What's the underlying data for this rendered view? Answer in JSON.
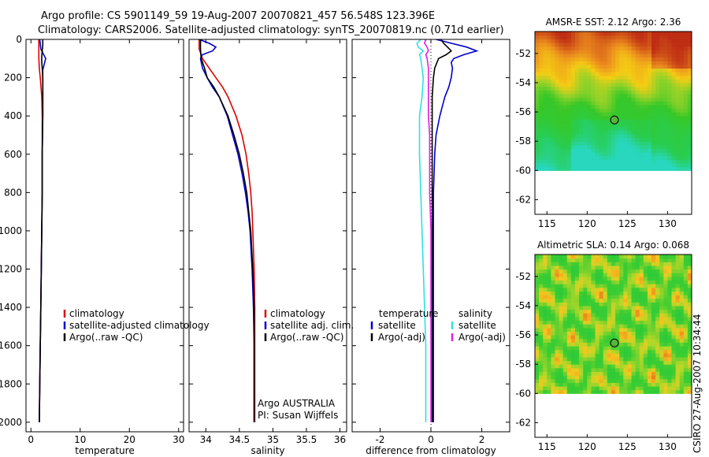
{
  "header": {
    "line1": "Argo profile: CS 5901149_59 19-Aug-2007 20070821_457 56.548S 123.396E",
    "line2": "Climatology: CARS2006. Satellite-adjusted climatology: synTS_20070819.nc (0.71d earlier)"
  },
  "side_label": "CSIRO 27-Aug-2007 10:34:44",
  "colors": {
    "red": "#e00000",
    "blue": "#0000d0",
    "black": "#000000",
    "cyan": "#30e0e0",
    "magenta": "#e020e0"
  },
  "chart_data": [
    {
      "type": "line",
      "xlabel": "temperature",
      "ylabel": "",
      "xlim": [
        -1,
        31
      ],
      "ylim": [
        2050,
        0
      ],
      "xticks": [
        "0",
        "10",
        "20",
        "30"
      ],
      "yticks": [
        "0",
        "200",
        "400",
        "600",
        "800",
        "1000",
        "1200",
        "1400",
        "1600",
        "1800",
        "2000"
      ],
      "legend": [
        "climatology",
        "satellite-adjusted climatology",
        "Argo(..raw -QC)"
      ],
      "legend_position": "bottom-right",
      "series": [
        {
          "name": "climatology",
          "color": "red",
          "depth": [
            0,
            50,
            100,
            150,
            200,
            300,
            400,
            500,
            600,
            800,
            1000,
            1200,
            1400,
            1600,
            1800,
            2000
          ],
          "values": [
            1.6,
            1.6,
            1.6,
            1.7,
            1.9,
            2.2,
            2.3,
            2.3,
            2.3,
            2.3,
            2.2,
            2.1,
            2.0,
            1.9,
            1.8,
            1.7
          ]
        },
        {
          "name": "satellite-adjusted climatology",
          "color": "blue",
          "depth": [
            0,
            20,
            50,
            80,
            100,
            130,
            160,
            200,
            300,
            400,
            600,
            800,
            1000,
            1200,
            1400,
            1600,
            1800,
            2000
          ],
          "values": [
            1.8,
            1.9,
            2.0,
            2.6,
            3.0,
            2.7,
            2.4,
            2.4,
            2.4,
            2.4,
            2.3,
            2.3,
            2.2,
            2.1,
            2.0,
            1.9,
            1.8,
            1.7
          ]
        },
        {
          "name": "Argo(..raw -QC)",
          "color": "black",
          "depth": [
            0,
            30,
            60,
            90,
            120,
            150,
            200,
            300,
            400,
            600,
            800,
            1000,
            1200,
            1400,
            1600,
            1800,
            2000
          ],
          "values": [
            2.4,
            2.4,
            2.3,
            2.2,
            2.2,
            2.3,
            2.4,
            2.4,
            2.4,
            2.3,
            2.3,
            2.2,
            2.1,
            2.0,
            1.9,
            1.8,
            1.7
          ]
        }
      ]
    },
    {
      "type": "line",
      "xlabel": "salinity",
      "xlim": [
        33.75,
        36.1
      ],
      "ylim": [
        2050,
        0
      ],
      "xticks": [
        "34",
        "34.5",
        "35",
        "35.5",
        "36"
      ],
      "legend": [
        "climatology",
        "satellite adj. clim.",
        "Argo(..raw -QC)"
      ],
      "legend_position": "bottom-right",
      "annotation": [
        "Argo AUSTRALIA",
        "PI: Susan Wijffels"
      ],
      "series": [
        {
          "name": "climatology",
          "color": "red",
          "depth": [
            0,
            50,
            100,
            150,
            200,
            250,
            300,
            400,
            500,
            600,
            700,
            800,
            900,
            1000,
            1200,
            1400,
            1600,
            1800,
            2000
          ],
          "values": [
            33.9,
            33.9,
            33.95,
            34.05,
            34.15,
            34.25,
            34.33,
            34.45,
            34.54,
            34.6,
            34.64,
            34.67,
            34.69,
            34.7,
            34.72,
            34.73,
            34.73,
            34.73,
            34.73
          ]
        },
        {
          "name": "satellite adj. clim.",
          "color": "blue",
          "depth": [
            0,
            20,
            40,
            60,
            80,
            100,
            150,
            200,
            250,
            300,
            400,
            500,
            600,
            700,
            800,
            900,
            1000,
            1200,
            1400,
            1600,
            1800,
            2000
          ],
          "values": [
            33.9,
            34.05,
            34.15,
            34.1,
            33.95,
            33.92,
            33.95,
            34.02,
            34.1,
            34.2,
            34.32,
            34.4,
            34.48,
            34.54,
            34.59,
            34.63,
            34.66,
            34.69,
            34.71,
            34.72,
            34.72,
            34.72
          ]
        },
        {
          "name": "Argo(..raw -QC)",
          "color": "black",
          "depth": [
            0,
            50,
            100,
            150,
            200,
            250,
            300,
            400,
            500,
            600,
            700,
            800,
            900,
            1000,
            1200,
            1400,
            1600,
            1800,
            2000
          ],
          "values": [
            33.92,
            33.92,
            33.93,
            33.98,
            34.02,
            34.12,
            34.2,
            34.33,
            34.42,
            34.5,
            34.56,
            34.61,
            34.64,
            34.67,
            34.7,
            34.72,
            34.72,
            34.72,
            34.72
          ]
        }
      ]
    },
    {
      "type": "line",
      "xlabel": "difference from climatology",
      "xlim": [
        -3.1,
        3.1
      ],
      "ylim": [
        2050,
        0
      ],
      "xticks": [
        "-2",
        "0",
        "2"
      ],
      "legend_titles": [
        "temperature",
        "salinity"
      ],
      "legend": [
        "satellite",
        "Argo(-adj)",
        "satellite",
        "Argo(-adj)"
      ],
      "legend_position": "bottom",
      "series": [
        {
          "name": "satellite",
          "color": "blue",
          "depth": [
            0,
            20,
            40,
            60,
            80,
            100,
            120,
            150,
            200,
            250,
            300,
            400,
            500,
            600,
            800,
            1000,
            1200,
            1400,
            1600,
            1800,
            2000
          ],
          "values": [
            0.2,
            0.8,
            1.4,
            1.8,
            1.3,
            0.9,
            0.8,
            0.85,
            0.8,
            0.7,
            0.55,
            0.35,
            0.2,
            0.15,
            0.1,
            0.1,
            0.1,
            0.1,
            0.1,
            0.1,
            0.1
          ]
        },
        {
          "name": "Argo(-adj)",
          "color": "black",
          "depth": [
            0,
            20,
            40,
            60,
            80,
            100,
            150,
            200,
            300,
            400,
            500,
            600,
            800,
            1000,
            1200,
            1400,
            1600,
            1800,
            2000
          ],
          "values": [
            0.4,
            0.5,
            0.65,
            0.8,
            0.6,
            0.3,
            0.15,
            0.1,
            0.05,
            0.05,
            0.05,
            0.05,
            0.05,
            0.05,
            0.05,
            0.05,
            0.05,
            0.05,
            0.05
          ]
        },
        {
          "name": "satellite",
          "color": "cyan",
          "depth": [
            0,
            20,
            40,
            60,
            80,
            100,
            150,
            200,
            300,
            400,
            500,
            600,
            800,
            1000,
            1200,
            1400,
            1600,
            1800,
            2000
          ],
          "values": [
            -0.4,
            -0.55,
            -0.5,
            -0.3,
            -0.45,
            -0.4,
            -0.35,
            -0.3,
            -0.35,
            -0.45,
            -0.45,
            -0.45,
            -0.4,
            -0.35,
            -0.3,
            -0.25,
            -0.2,
            -0.2,
            -0.2
          ]
        },
        {
          "name": "Argo(-adj)",
          "color": "magenta",
          "depth": [
            0,
            20,
            40,
            60,
            80,
            100,
            150,
            200,
            300,
            400,
            500,
            600,
            800,
            1000,
            1200,
            1400,
            1600,
            1800,
            2000
          ],
          "values": [
            -0.2,
            -0.25,
            -0.15,
            -0.1,
            -0.2,
            -0.15,
            -0.1,
            -0.1,
            -0.1,
            -0.1,
            -0.05,
            -0.05,
            -0.05,
            0.0,
            0.0,
            0.0,
            0.0,
            0.0,
            0.0
          ]
        }
      ]
    },
    {
      "type": "heatmap",
      "title": "AMSR-E SST: 2.12 Argo: 2.36",
      "xlim": [
        113.5,
        133
      ],
      "ylim": [
        -63,
        -50.5
      ],
      "xticks": [
        "115",
        "120",
        "125",
        "130"
      ],
      "yticks": [
        "-52",
        "-54",
        "-56",
        "-58",
        "-60",
        "-62"
      ],
      "data_lat_range": [
        -60,
        -50.5
      ],
      "marker": {
        "lon": 123.396,
        "lat": -56.548
      }
    },
    {
      "type": "heatmap",
      "title": "Altimetric SLA: 0.14 Argo: 0.068",
      "xlim": [
        113.5,
        133
      ],
      "ylim": [
        -63,
        -50.5
      ],
      "xticks": [
        "115",
        "120",
        "125",
        "130"
      ],
      "yticks": [
        "-52",
        "-54",
        "-56",
        "-58",
        "-60",
        "-62"
      ],
      "data_lat_range": [
        -60,
        -50.5
      ],
      "marker": {
        "lon": 123.396,
        "lat": -56.548
      }
    }
  ]
}
